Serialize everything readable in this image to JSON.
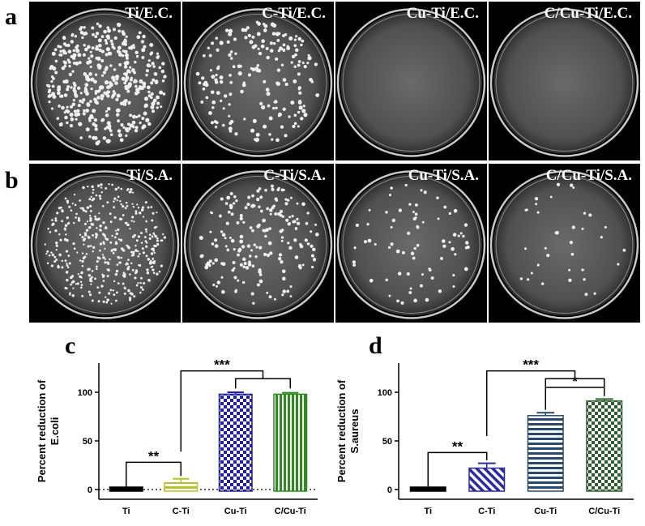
{
  "panels": {
    "a": {
      "letter": "a",
      "plates": [
        {
          "label": "Ti/E.C.",
          "colonies": "dense"
        },
        {
          "label": "C-Ti/E.C.",
          "colonies": "medium"
        },
        {
          "label": "Cu-Ti/E.C.",
          "colonies": "none"
        },
        {
          "label": "C/Cu-Ti/E.C.",
          "colonies": "none"
        }
      ]
    },
    "b": {
      "letter": "b",
      "plates": [
        {
          "label": "Ti/S.A.",
          "colonies": "dense"
        },
        {
          "label": "C-Ti/S.A.",
          "colonies": "medium"
        },
        {
          "label": "Cu-Ti/S.A.",
          "colonies": "sparse"
        },
        {
          "label": "C/Cu-Ti/S.A.",
          "colonies": "few"
        }
      ]
    }
  },
  "chart_data": [
    {
      "panel_letter": "c",
      "type": "bar",
      "categories": [
        "Ti",
        "C-Ti",
        "Cu-Ti",
        "C/Cu-Ti"
      ],
      "values": [
        0,
        7,
        98,
        98
      ],
      "errors": [
        0,
        4,
        2,
        1.5
      ],
      "ylabel_lines": [
        "Percent reduction of",
        "E.coli"
      ],
      "yticks": [
        0,
        50,
        100
      ],
      "ylim": [
        -10,
        130
      ],
      "zero_line": "dotted",
      "colors": [
        "#000000",
        "#b5c228",
        "#1e1ea8",
        "#2e8c1e"
      ],
      "patterns": [
        "solid",
        "hstripe",
        "checker",
        "vstripe"
      ],
      "significance": [
        {
          "from": 0,
          "to": 1,
          "label": "**",
          "level": 28
        },
        {
          "from": 1,
          "to_group": [
            2,
            3
          ],
          "label": "***",
          "level": 122
        }
      ]
    },
    {
      "panel_letter": "d",
      "type": "bar",
      "categories": [
        "Ti",
        "C-Ti",
        "Cu-Ti",
        "C/Cu-Ti"
      ],
      "values": [
        0,
        22,
        76,
        91
      ],
      "errors": [
        0,
        5,
        3,
        2
      ],
      "ylabel_lines": [
        "Percent reduction of",
        "S.aureus"
      ],
      "yticks": [
        0,
        50,
        100
      ],
      "ylim": [
        -10,
        130
      ],
      "zero_line": "none",
      "colors": [
        "#000000",
        "#2a2aa8",
        "#244a6e",
        "#2a5e2a"
      ],
      "patterns": [
        "solid",
        "diagstripe",
        "hstripe",
        "checker"
      ],
      "significance": [
        {
          "from": 0,
          "to": 1,
          "label": "**",
          "level": 38
        },
        {
          "from": 2,
          "to": 3,
          "label": "*",
          "level": 105
        },
        {
          "from": 1,
          "to_group": [
            2,
            3
          ],
          "label": "***",
          "level": 122
        }
      ]
    }
  ]
}
